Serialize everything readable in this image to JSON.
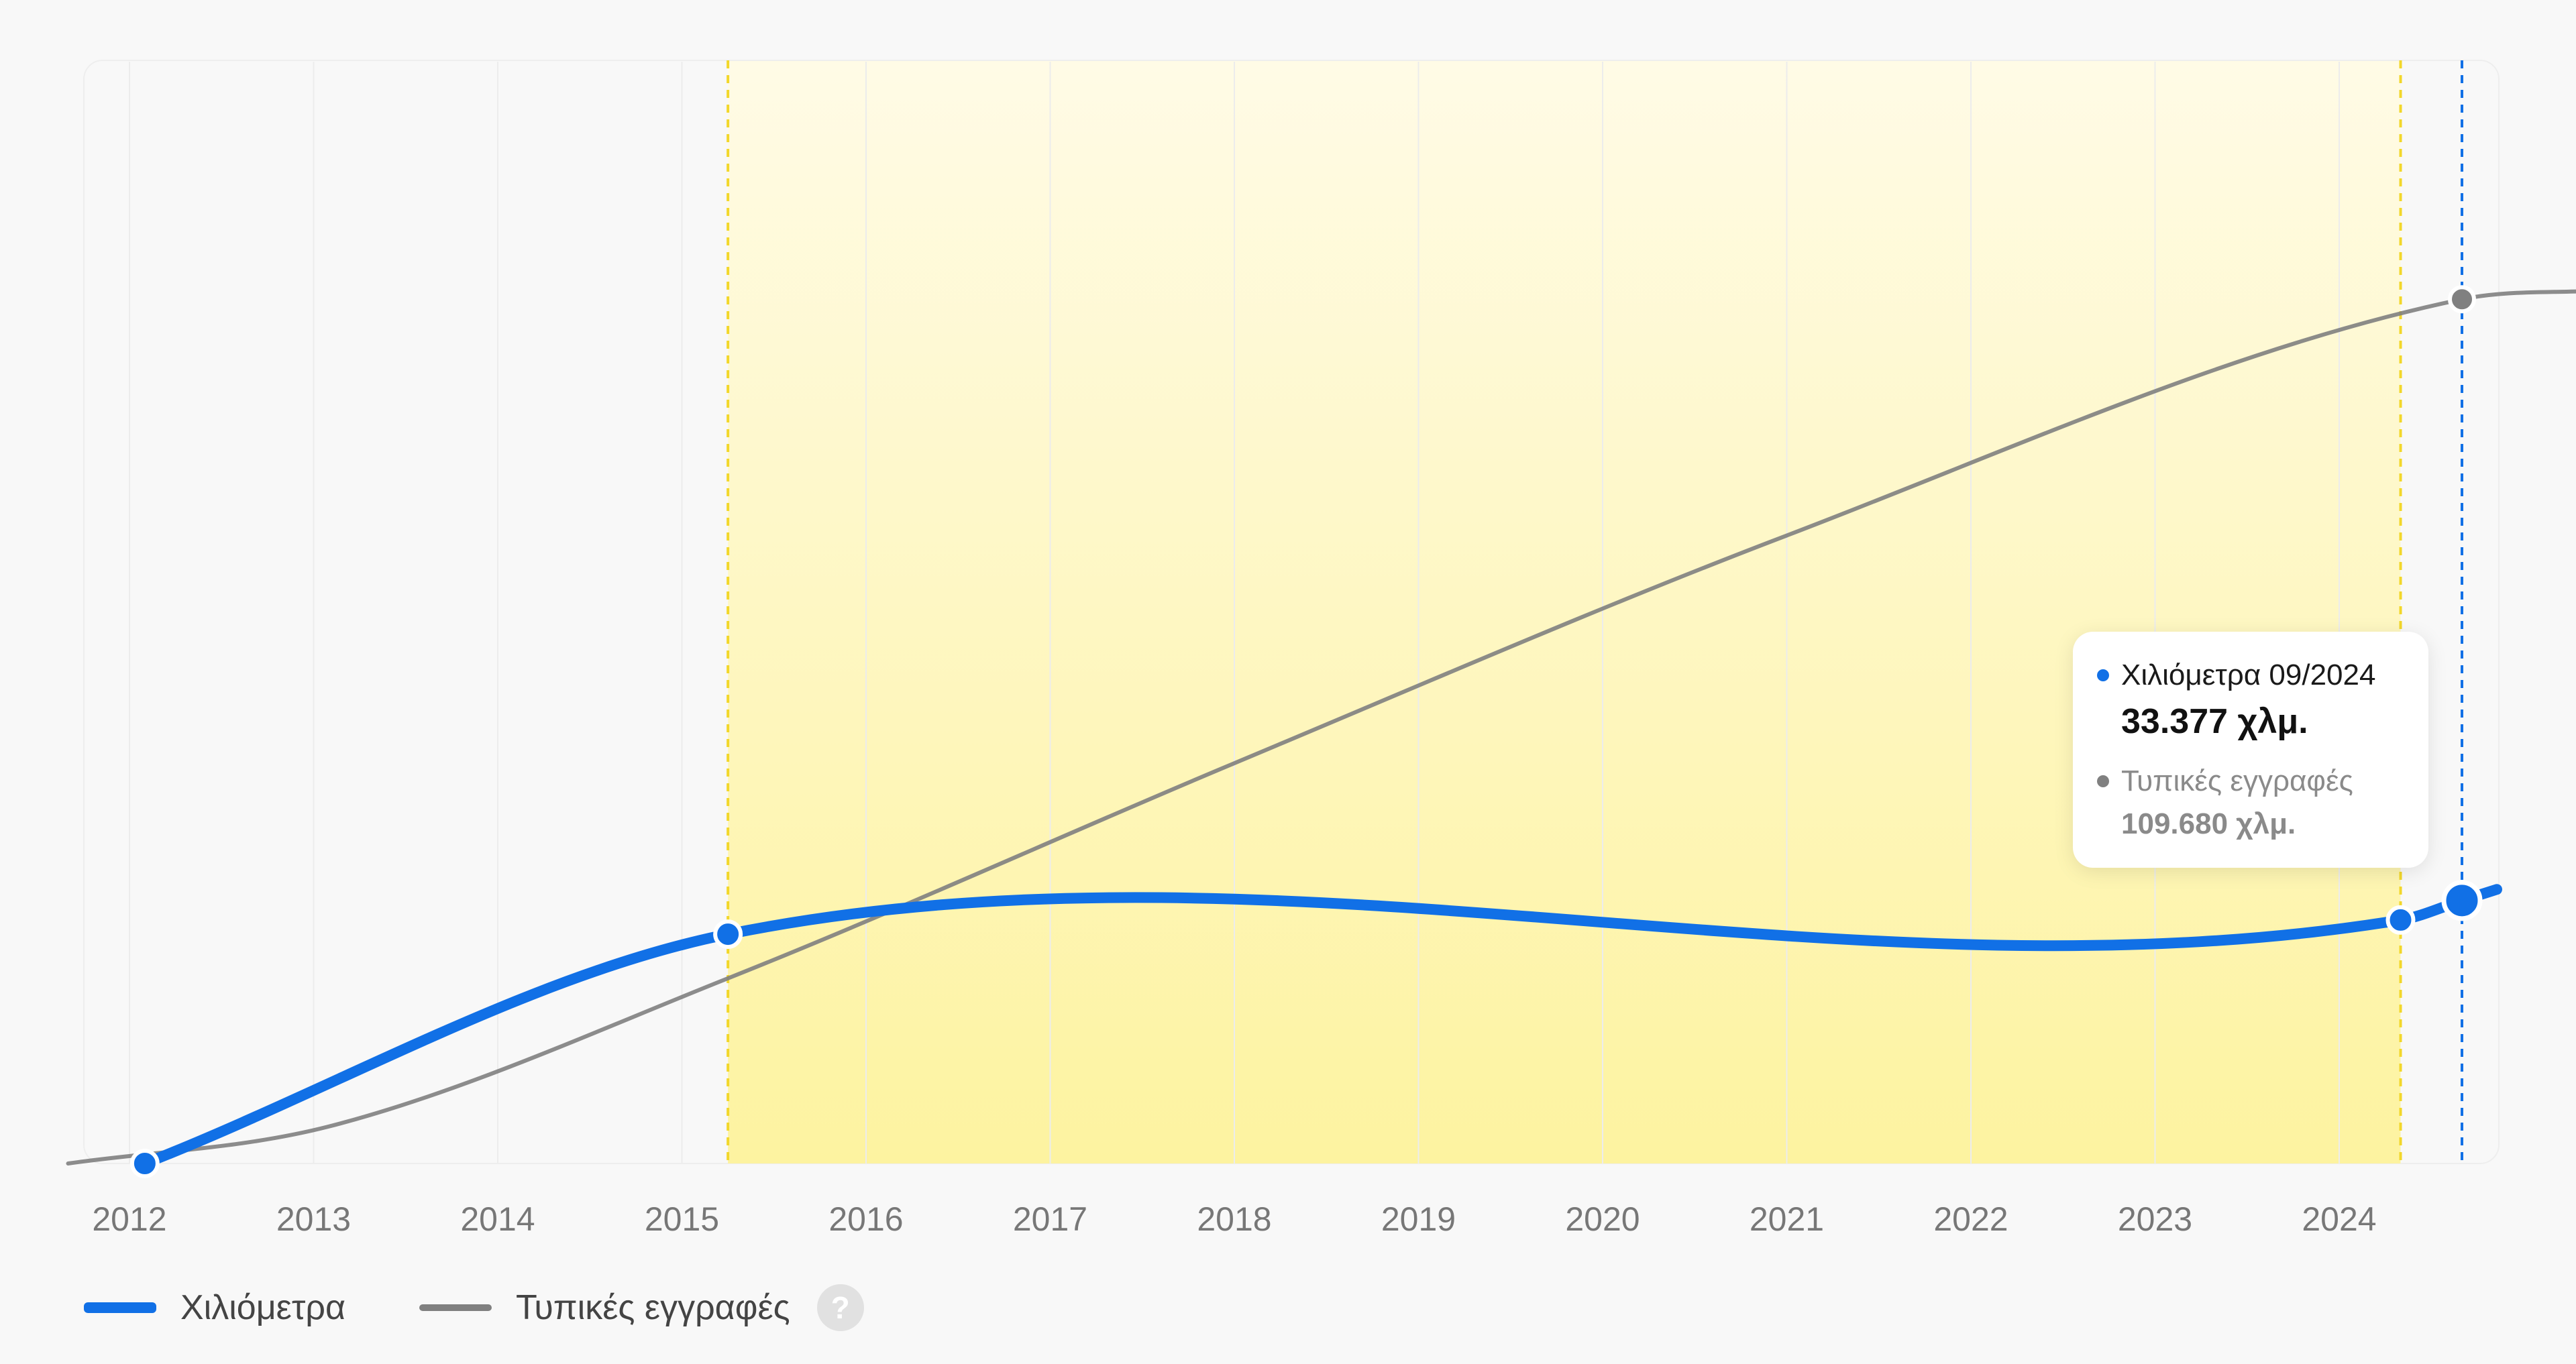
{
  "chart_data": {
    "type": "line",
    "x_ticks": [
      "2012",
      "2013",
      "2014",
      "2015",
      "2016",
      "2017",
      "2018",
      "2019",
      "2020",
      "2021",
      "2022",
      "2023",
      "2024"
    ],
    "xlim": [
      "2011-09",
      "2025-06"
    ],
    "ylim": [
      0,
      140000
    ],
    "grid": "vertical",
    "legend_placement": "bottom-left",
    "highlight_range": [
      "2015-04",
      "2024-05"
    ],
    "cursor": "2024-09",
    "series": [
      {
        "name": "Χιλιόμετρα",
        "color": "#1170e6",
        "points": [
          {
            "x": "2012-02",
            "y": 0
          },
          {
            "x": "2015-04",
            "y": 29100
          },
          {
            "x": "2024-05",
            "y": 30900
          },
          {
            "x": "2024-09",
            "y": 33377
          }
        ]
      },
      {
        "name": "Τυπικές εγγραφές",
        "color": "#808080",
        "points": [
          {
            "x": "2011-09",
            "y": 0
          },
          {
            "x": "2013-02",
            "y": 4700
          },
          {
            "x": "2015-04",
            "y": 23500
          },
          {
            "x": "2018-01",
            "y": 50800
          },
          {
            "x": "2021-01",
            "y": 79700
          },
          {
            "x": "2024-09",
            "y": 109680
          },
          {
            "x": "2025-06",
            "y": 110800
          }
        ]
      }
    ]
  },
  "legend": {
    "km_label": "Χιλιόμετρα",
    "typical_label": "Τυπικές εγγραφές",
    "help_glyph": "?"
  },
  "tooltip": {
    "km_label": "Χιλιόμετρα 09/2024",
    "km_value": "33.377 χλμ.",
    "typical_label": "Τυπικές εγγραφές",
    "typical_value": "109.680 χλμ."
  }
}
